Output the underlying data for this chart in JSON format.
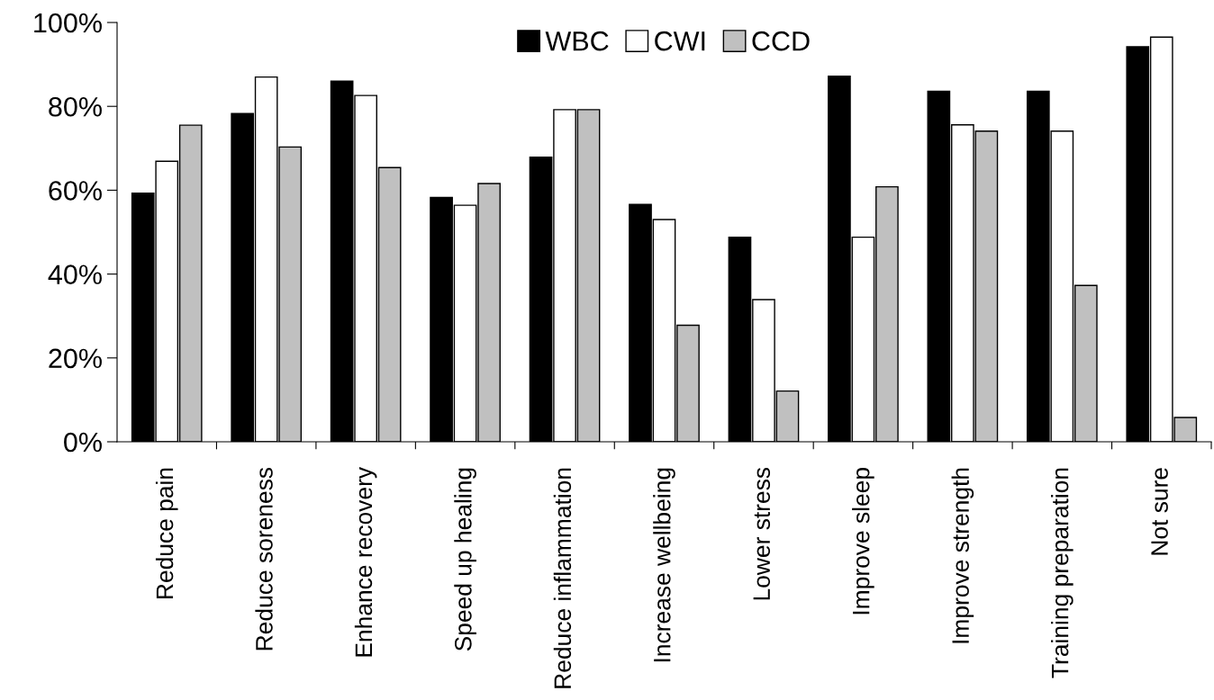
{
  "chart_data": {
    "type": "bar",
    "categories": [
      "Reduce pain",
      "Reduce soreness",
      "Enhance recovery",
      "Speed up healing",
      "Reduce inflammation",
      "Increase wellbeing",
      "Lower stress",
      "Improve sleep",
      "Improve strength",
      "Training preparation",
      "Not sure"
    ],
    "series": [
      {
        "name": "WBC",
        "color": "#000000",
        "values": [
          59.3,
          78.3,
          86.0,
          58.3,
          67.9,
          56.6,
          48.8,
          87.2,
          83.6,
          83.6,
          94.2
        ]
      },
      {
        "name": "CWI",
        "color": "#ffffff",
        "values": [
          66.9,
          87.0,
          82.6,
          56.4,
          79.2,
          53.0,
          33.9,
          48.8,
          75.6,
          74.1,
          96.5
        ]
      },
      {
        "name": "CCD",
        "color": "#c0c0c0",
        "values": [
          75.5,
          70.3,
          65.4,
          61.6,
          79.2,
          27.8,
          12.1,
          60.8,
          74.1,
          37.3,
          5.8
        ]
      }
    ],
    "ylim": [
      0,
      100
    ],
    "yticks": [
      {
        "value": 0,
        "label": "0%"
      },
      {
        "value": 20,
        "label": "20%"
      },
      {
        "value": 40,
        "label": "40%"
      },
      {
        "value": 60,
        "label": "60%"
      },
      {
        "value": 80,
        "label": "80%"
      },
      {
        "value": 100,
        "label": "100%"
      }
    ],
    "grid": false,
    "legend": "top"
  }
}
